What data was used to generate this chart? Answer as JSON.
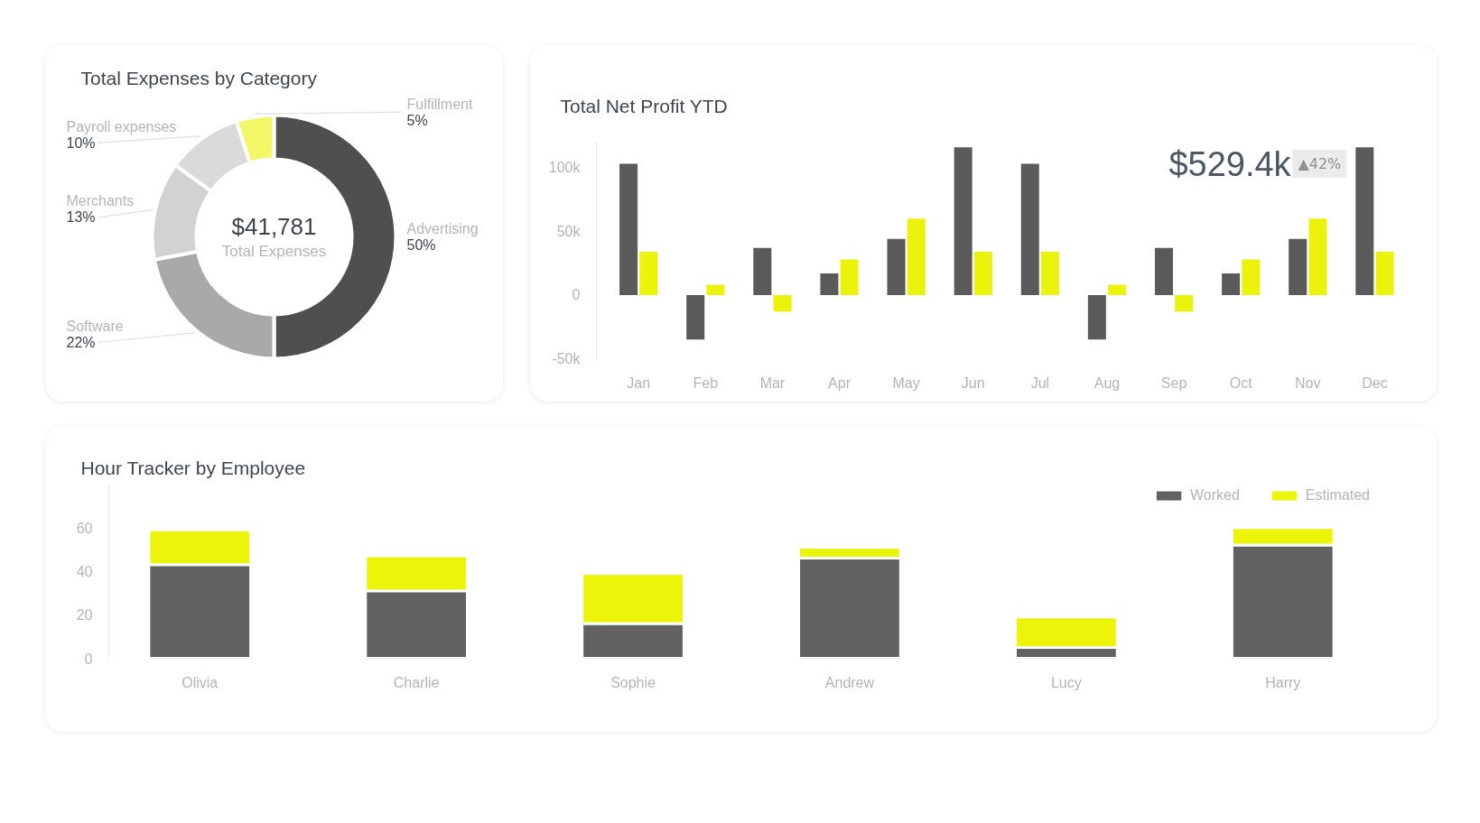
{
  "chart_data": [
    {
      "type": "donut",
      "title": "Total Expenses by Category",
      "categories": [
        "Advertising",
        "Software",
        "Merchants",
        "Payroll expenses",
        "Fulfillment"
      ],
      "values": [
        50,
        22,
        13,
        10,
        5
      ],
      "value_labels": [
        "50%",
        "22%",
        "13%",
        "10%",
        "5%"
      ],
      "colors": [
        "#4f4f4f",
        "#a9a9a9",
        "#d2d2d2",
        "#dadada",
        "#f3f667"
      ],
      "annotations": [
        "$41,781",
        "Total Expenses"
      ]
    },
    {
      "type": "bar",
      "title": "Total Net Profit YTD",
      "categories": [
        "Jan",
        "Feb",
        "Mar",
        "Apr",
        "May",
        "Jun",
        "Jul",
        "Aug",
        "Sep",
        "Oct",
        "Nov",
        "Dec"
      ],
      "series": [
        {
          "color": "#5a5a5a",
          "values": [
            103000,
            -35000,
            37000,
            17000,
            44000,
            116000,
            103000,
            -35000,
            37000,
            17000,
            44000,
            116000
          ]
        },
        {
          "color": "#ebf30b",
          "values": [
            34000,
            8000,
            -13000,
            28000,
            60000,
            34000,
            34000,
            8000,
            -13000,
            28000,
            60000,
            34000
          ]
        }
      ],
      "ylim": [
        -50000,
        120000
      ],
      "yticks": [
        {
          "value": -50000,
          "label": "-50k"
        },
        {
          "value": 0,
          "label": "0"
        },
        {
          "value": 50000,
          "label": "50k"
        },
        {
          "value": 100000,
          "label": "100k"
        }
      ],
      "grid": false,
      "annotations": [
        "$529.4k",
        "▲42%"
      ]
    },
    {
      "type": "bar",
      "stacked": true,
      "title": "Hour Tracker by Employee",
      "categories": [
        "Olivia",
        "Charlie",
        "Sophie",
        "Andrew",
        "Lucy",
        "Harry"
      ],
      "series": [
        {
          "name": "Worked",
          "color": "#616161",
          "values": [
            43,
            31,
            16,
            46,
            5,
            52
          ]
        },
        {
          "name": "Estimated",
          "color": "#ecf40a",
          "values": [
            16,
            16,
            23,
            5,
            14,
            8
          ]
        }
      ],
      "ylim": [
        0,
        80
      ],
      "yticks": [
        0,
        20,
        40,
        60
      ],
      "grid": false,
      "legend": "top right"
    }
  ]
}
